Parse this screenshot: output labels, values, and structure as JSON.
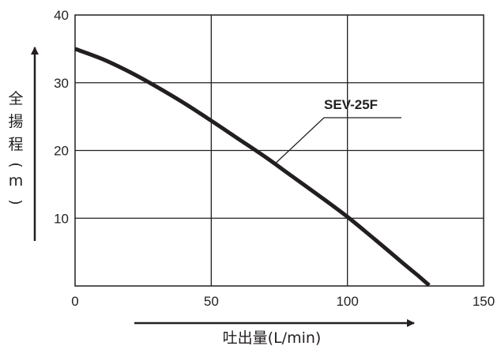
{
  "chart_data": {
    "type": "line",
    "title": "",
    "xlabel": "吐出量(L/min)",
    "ylabel_chars": [
      "全",
      "揚",
      "程",
      "(",
      "m",
      ")"
    ],
    "xlim": [
      0,
      150
    ],
    "ylim": [
      0,
      40
    ],
    "x_ticks": [
      "0",
      "50",
      "100",
      "150"
    ],
    "y_ticks": [
      "10",
      "20",
      "30",
      "40"
    ],
    "grid": true,
    "series": [
      {
        "name": "SEV-25F",
        "x": [
          0,
          10,
          20,
          30,
          40,
          50,
          60,
          70,
          80,
          90,
          100,
          110,
          120,
          126,
          130
        ],
        "y": [
          35,
          33.5,
          31.6,
          29.4,
          27,
          24.4,
          21.7,
          19,
          16.1,
          13.2,
          10.2,
          6.9,
          3.5,
          1.5,
          0.1
        ]
      }
    ]
  }
}
